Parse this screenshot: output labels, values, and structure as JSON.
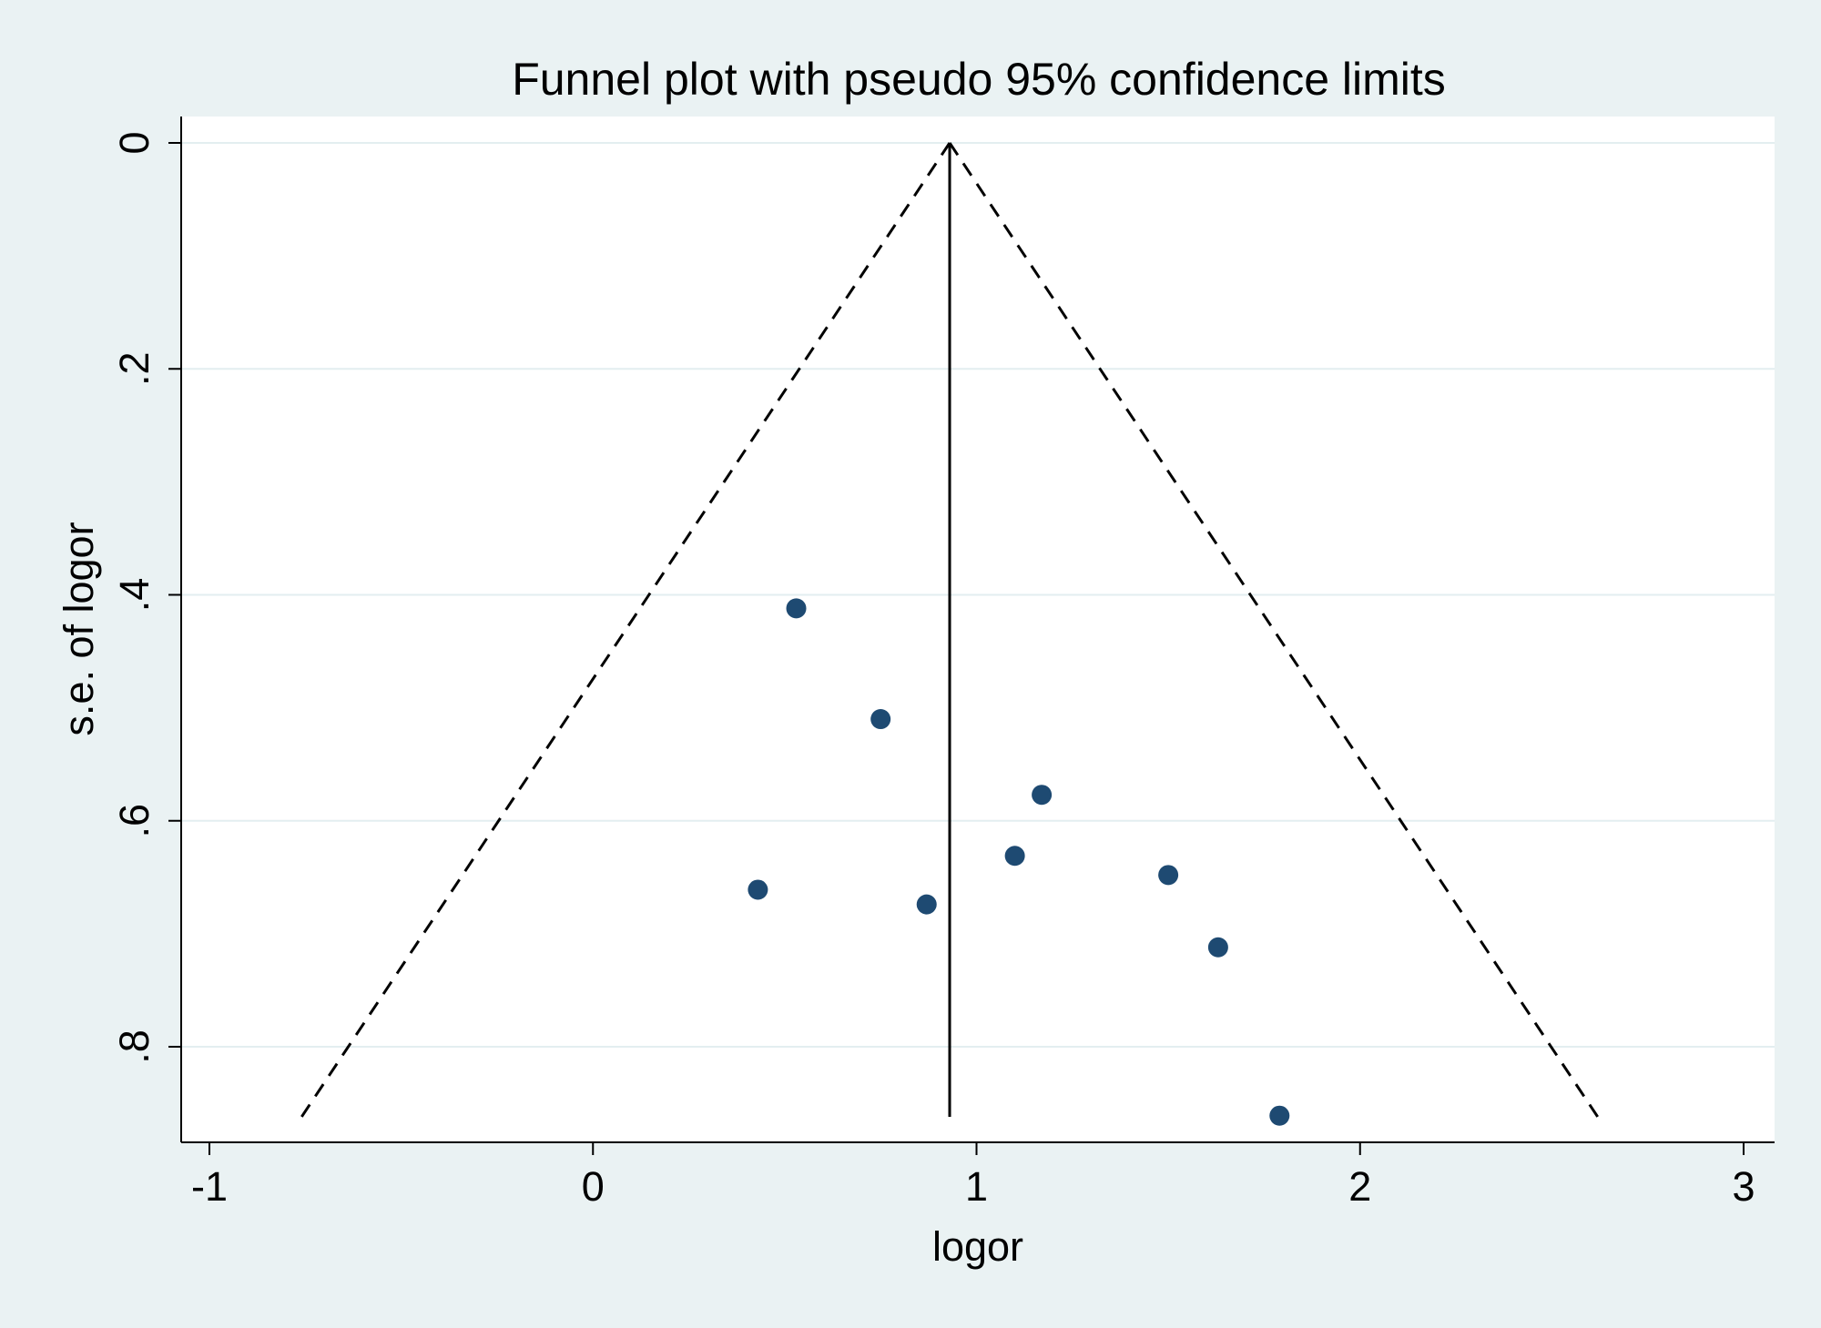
{
  "chart_data": {
    "type": "scatter",
    "title": "Funnel plot with pseudo 95% confidence limits",
    "xlabel": "logor",
    "ylabel": "s.e. of logor",
    "xlim": [
      -1,
      3
    ],
    "ylim": [
      0,
      0.8
    ],
    "y_reversed": true,
    "grid": true,
    "legend": "none",
    "x_ticks": [
      {
        "value": -1,
        "label": "-1"
      },
      {
        "value": 0,
        "label": "0"
      },
      {
        "value": 1,
        "label": "1"
      },
      {
        "value": 2,
        "label": "2"
      },
      {
        "value": 3,
        "label": "3"
      }
    ],
    "y_ticks": [
      {
        "value": 0,
        "label": "0"
      },
      {
        "value": 0.2,
        "label": ".2"
      },
      {
        "value": 0.4,
        "label": ".4"
      },
      {
        "value": 0.6,
        "label": ".6"
      },
      {
        "value": 0.8,
        "label": ".8"
      }
    ],
    "pooled_estimate": 0.93,
    "max_se": 0.862,
    "ci_z": 1.96,
    "points": [
      {
        "x": 0.53,
        "y": 0.412
      },
      {
        "x": 0.75,
        "y": 0.51
      },
      {
        "x": 1.17,
        "y": 0.577
      },
      {
        "x": 1.1,
        "y": 0.631
      },
      {
        "x": 0.43,
        "y": 0.661
      },
      {
        "x": 0.87,
        "y": 0.674
      },
      {
        "x": 1.5,
        "y": 0.648
      },
      {
        "x": 1.63,
        "y": 0.712
      },
      {
        "x": 1.79,
        "y": 0.861
      }
    ],
    "colors": {
      "background": "#eaf2f3",
      "plot_area": "#ffffff",
      "grid": "#e3eef0",
      "marker": "#1e4a72",
      "line": "#000000"
    }
  }
}
